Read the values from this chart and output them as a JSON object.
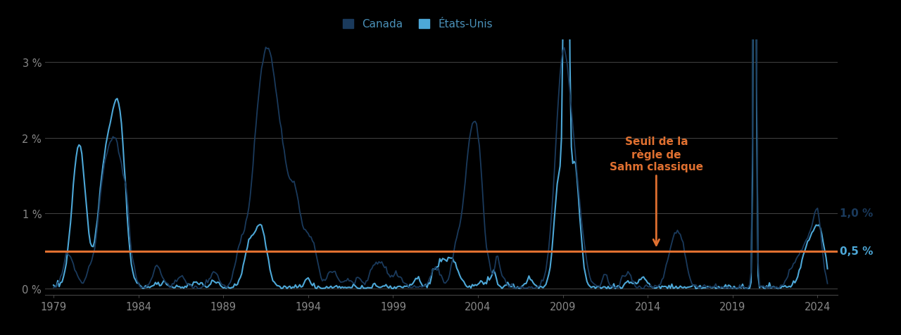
{
  "canada_color": "#1a3a5c",
  "usa_color": "#4da8d8",
  "threshold_color": "#e07030",
  "threshold_value": 0.5,
  "annotation_text": "Seuil de la\nrègle de\nSahm classique",
  "annotation_color": "#e07030",
  "label_canada": "Canada",
  "label_usa": "États-Unis",
  "label_10pct": "1,0 %",
  "label_05pct": "0,5 %",
  "canada_label_color": "#1a3a5c",
  "usa_label_color": "#4da8d8",
  "yticks": [
    0,
    1,
    2,
    3
  ],
  "ytick_labels": [
    "0 %",
    "1 %",
    "2 %",
    "3 %"
  ],
  "xticks": [
    1979,
    1984,
    1989,
    1994,
    1999,
    2004,
    2009,
    2014,
    2019,
    2024
  ],
  "ymax": 3.3,
  "ymin": -0.08,
  "background_color": "#000000",
  "plot_bg_color": "#000000",
  "grid_color": "#444444",
  "tick_color": "#888888",
  "canada_linewidth": 1.3,
  "usa_linewidth": 1.5,
  "legend_label_color": "#4a90b8"
}
